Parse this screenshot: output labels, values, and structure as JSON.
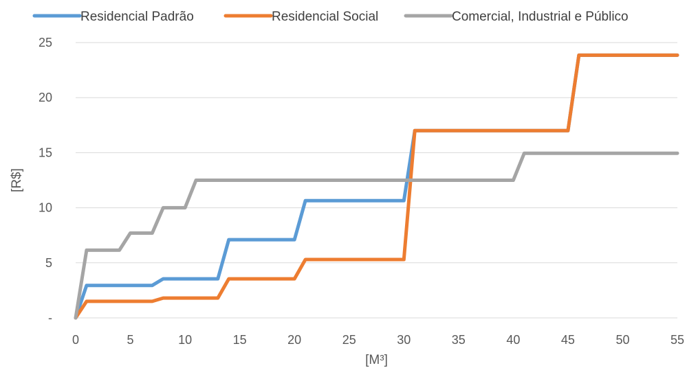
{
  "chart_data": {
    "type": "line",
    "title": "",
    "xlabel": "[M³]",
    "ylabel": "[R$]",
    "xlim": [
      0,
      55
    ],
    "ylim": [
      0,
      25
    ],
    "x_ticks": [
      "0",
      "5",
      "10",
      "15",
      "20",
      "25",
      "30",
      "35",
      "40",
      "45",
      "50",
      "55"
    ],
    "y_ticks": [
      "-",
      "5",
      "10",
      "15",
      "20",
      "25"
    ],
    "grid": "horizontal",
    "legend_position": "top",
    "series": [
      {
        "name": "Residencial Padrão",
        "color": "#5B9BD5",
        "points": [
          [
            0,
            0
          ],
          [
            1,
            2.95
          ],
          [
            7,
            2.95
          ],
          [
            8,
            3.55
          ],
          [
            13,
            3.55
          ],
          [
            14,
            7.1
          ],
          [
            20,
            7.1
          ],
          [
            21,
            10.65
          ],
          [
            30,
            10.65
          ],
          [
            31,
            17.0
          ],
          [
            45,
            17.0
          ],
          [
            46,
            23.85
          ],
          [
            55,
            23.85
          ]
        ]
      },
      {
        "name": "Residencial Social",
        "color": "#ED7D31",
        "points": [
          [
            0,
            0
          ],
          [
            1,
            1.5
          ],
          [
            7,
            1.5
          ],
          [
            8,
            1.8
          ],
          [
            13,
            1.8
          ],
          [
            14,
            3.55
          ],
          [
            20,
            3.55
          ],
          [
            21,
            5.3
          ],
          [
            30,
            5.3
          ],
          [
            31,
            17.0
          ],
          [
            45,
            17.0
          ],
          [
            46,
            23.85
          ],
          [
            55,
            23.85
          ]
        ]
      },
      {
        "name": "Comercial, Industrial e Público",
        "color": "#A5A5A5",
        "points": [
          [
            0,
            0
          ],
          [
            1,
            6.15
          ],
          [
            4,
            6.15
          ],
          [
            5,
            7.7
          ],
          [
            7,
            7.7
          ],
          [
            8,
            10.0
          ],
          [
            10,
            10.0
          ],
          [
            11,
            12.5
          ],
          [
            40,
            12.5
          ],
          [
            41,
            14.95
          ],
          [
            55,
            14.95
          ]
        ]
      }
    ]
  }
}
